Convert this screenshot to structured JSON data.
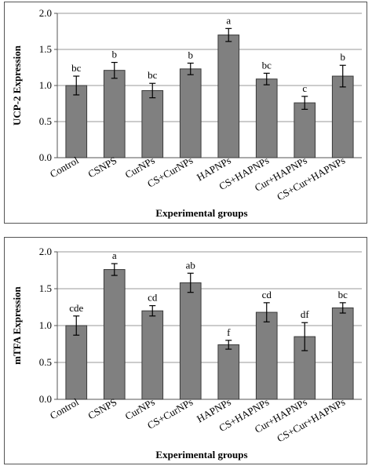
{
  "chart_data": [
    {
      "type": "bar",
      "categories": [
        "Control",
        "CSNPS",
        "CurNPs",
        "CS+CurNPs",
        "HAPNPs",
        "CS+HAPNPs",
        "Cur+HAPNPs",
        "CS+Cur+HAPNPs"
      ],
      "values": [
        1.0,
        1.21,
        0.93,
        1.23,
        1.7,
        1.09,
        0.76,
        1.13
      ],
      "errors": [
        0.13,
        0.11,
        0.1,
        0.08,
        0.09,
        0.08,
        0.09,
        0.15
      ],
      "significance_labels": [
        "bc",
        "b",
        "bc",
        "b",
        "a",
        "bc",
        "c",
        "b"
      ],
      "xlabel": "Experimental groups",
      "ylabel": "UCP-2 Expression",
      "ylim": [
        0,
        2.0
      ],
      "yticks": [
        "0.0",
        "0.5",
        "1.0",
        "1.5",
        "2.0"
      ],
      "grid": true,
      "bar_color": "#808080"
    },
    {
      "type": "bar",
      "categories": [
        "Control",
        "CSNPS",
        "CurNPs",
        "CS+CurNPs",
        "HAPNPs",
        "CS+HAPNPs",
        "Cur+HAPNPs",
        "CS+Cur+HAPNPs"
      ],
      "values": [
        1.0,
        1.76,
        1.2,
        1.58,
        0.74,
        1.18,
        0.85,
        1.24
      ],
      "errors": [
        0.13,
        0.08,
        0.07,
        0.13,
        0.06,
        0.13,
        0.19,
        0.07
      ],
      "significance_labels": [
        "cde",
        "a",
        "cd",
        "ab",
        "f",
        "cd",
        "df",
        "bc"
      ],
      "xlabel": "Experimental groups",
      "ylabel": "mTFA Expression",
      "ylim": [
        0,
        2.0
      ],
      "yticks": [
        "0.0",
        "0.5",
        "1.0",
        "1.5",
        "2.0"
      ],
      "grid": true,
      "bar_color": "#808080"
    }
  ]
}
